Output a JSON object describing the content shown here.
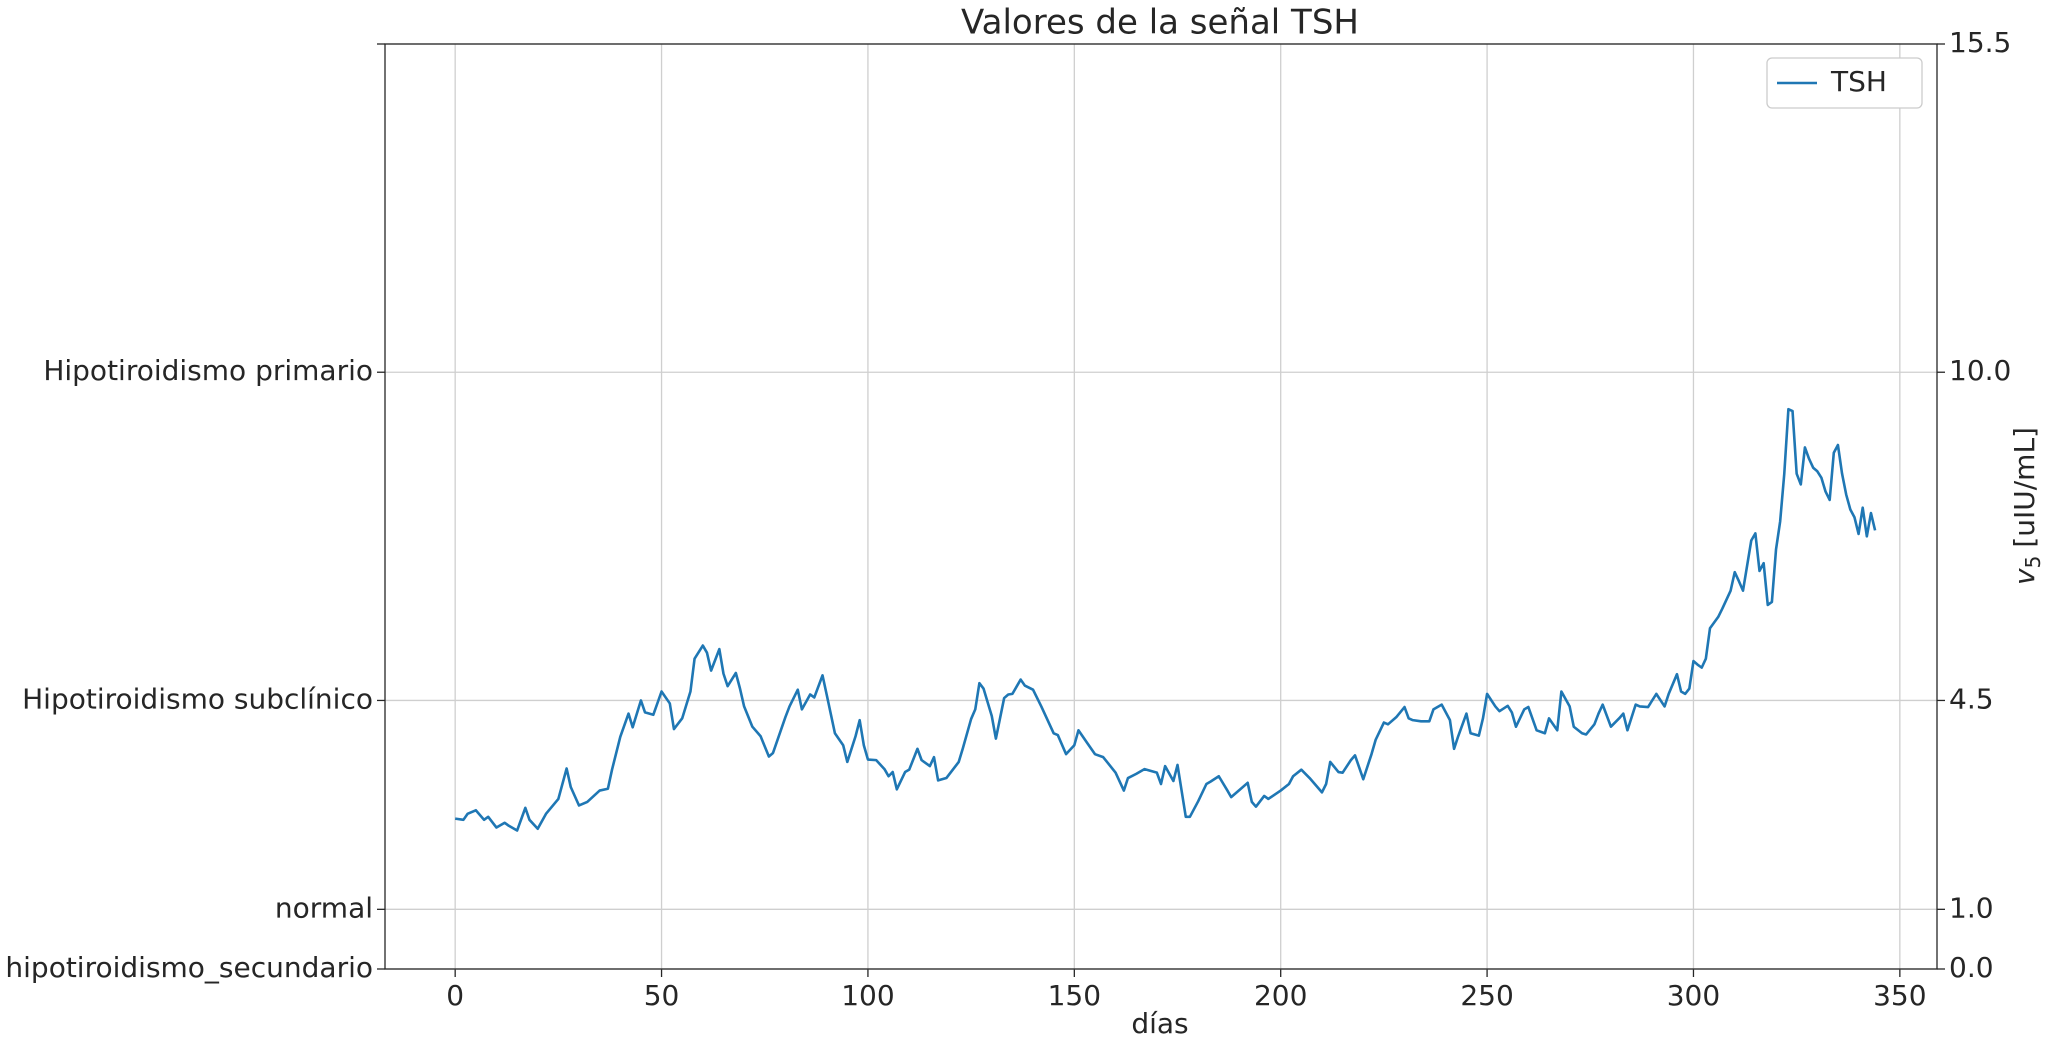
{
  "chart_data": {
    "type": "line",
    "title": "Valores de la señal TSH",
    "xlabel": "días",
    "y2label": {
      "symbol": "v",
      "subscript": "5",
      "unit": "[uIU/mL]"
    },
    "xlim": [
      -17,
      359
    ],
    "xticks": [
      0,
      50,
      100,
      150,
      200,
      250,
      300,
      350
    ],
    "ylim": [
      0,
      15.5
    ],
    "yticks": [
      {
        "value": 0,
        "label": "0.0"
      },
      {
        "value": 1,
        "label": "1.0"
      },
      4.5,
      {
        "value": 10,
        "label": "10.0"
      },
      15.5
    ],
    "y_category_ticks": [
      {
        "value": 0,
        "label": "hipotiroidismo_secundario"
      },
      {
        "value": 1,
        "label": "normal"
      },
      {
        "value": 4.5,
        "label": "Hipotiroidismo subclínico"
      },
      {
        "value": 10,
        "label": "Hipotiroidismo primario"
      }
    ],
    "grid": true,
    "legend": "upper right",
    "x": [
      0,
      2,
      3,
      5,
      7,
      8,
      10,
      12,
      13,
      15,
      17,
      18,
      20,
      22,
      25,
      27,
      28,
      30,
      32,
      35,
      37,
      38,
      40,
      42,
      43,
      45,
      46,
      48,
      50,
      52,
      53,
      55,
      57,
      58,
      60,
      61,
      62,
      64,
      65,
      66,
      68,
      69,
      70,
      72,
      74,
      76,
      77,
      80,
      81,
      83,
      84,
      86,
      87,
      89,
      90,
      92,
      94,
      95,
      97,
      98,
      99,
      100,
      102,
      104,
      105,
      106,
      107,
      109,
      110,
      112,
      113,
      115,
      116,
      117,
      119,
      122,
      123,
      125,
      126,
      127,
      128,
      130,
      131,
      133,
      134,
      135,
      137,
      138,
      140,
      142,
      145,
      146,
      148,
      150,
      151,
      153,
      155,
      157,
      160,
      162,
      163,
      165,
      167,
      170,
      171,
      172,
      174,
      175,
      177,
      178,
      180,
      182,
      183,
      185,
      187,
      188,
      190,
      192,
      193,
      194,
      196,
      197,
      200,
      202,
      203,
      205,
      207,
      210,
      211,
      212,
      214,
      215,
      217,
      218,
      220,
      222,
      223,
      225,
      226,
      228,
      230,
      231,
      232,
      234,
      236,
      237,
      239,
      240,
      241,
      242,
      243,
      245,
      246,
      248,
      249,
      250,
      252,
      253,
      255,
      256,
      257,
      259,
      260,
      262,
      264,
      265,
      267,
      268,
      270,
      271,
      273,
      274,
      276,
      277,
      278,
      280,
      282,
      283,
      284,
      286,
      287,
      289,
      290,
      291,
      293,
      294,
      296,
      297,
      298,
      299,
      300,
      301,
      302,
      303,
      304,
      306,
      307,
      309,
      310,
      311,
      312,
      314,
      315,
      316,
      317,
      318,
      319,
      320,
      321,
      322,
      323,
      324,
      325,
      326,
      327,
      328,
      329,
      330,
      331,
      332,
      333,
      334,
      335,
      336,
      337,
      338,
      339,
      340,
      341,
      342,
      343,
      344
    ],
    "series": [
      {
        "name": "TSH",
        "color": "#1f77b4",
        "values": [
          2.52,
          2.5,
          2.6,
          2.66,
          2.5,
          2.55,
          2.37,
          2.45,
          2.4,
          2.32,
          2.7,
          2.5,
          2.35,
          2.6,
          2.85,
          3.36,
          3.05,
          2.74,
          2.8,
          2.99,
          3.02,
          3.34,
          3.89,
          4.28,
          4.05,
          4.5,
          4.3,
          4.26,
          4.65,
          4.45,
          4.02,
          4.2,
          4.65,
          5.2,
          5.42,
          5.3,
          5.0,
          5.36,
          4.95,
          4.74,
          4.96,
          4.7,
          4.4,
          4.06,
          3.9,
          3.56,
          3.62,
          4.22,
          4.4,
          4.68,
          4.35,
          4.6,
          4.55,
          4.92,
          4.6,
          3.95,
          3.75,
          3.47,
          3.9,
          4.17,
          3.75,
          3.51,
          3.5,
          3.35,
          3.23,
          3.3,
          3.01,
          3.3,
          3.34,
          3.69,
          3.5,
          3.4,
          3.55,
          3.16,
          3.2,
          3.47,
          3.7,
          4.19,
          4.35,
          4.79,
          4.7,
          4.24,
          3.86,
          4.54,
          4.6,
          4.61,
          4.85,
          4.75,
          4.68,
          4.4,
          3.95,
          3.92,
          3.6,
          3.75,
          4.0,
          3.8,
          3.6,
          3.55,
          3.29,
          2.99,
          3.2,
          3.27,
          3.35,
          3.29,
          3.1,
          3.4,
          3.15,
          3.42,
          2.55,
          2.55,
          2.81,
          3.1,
          3.14,
          3.23,
          3.0,
          2.88,
          3.0,
          3.12,
          2.8,
          2.72,
          2.9,
          2.85,
          2.99,
          3.1,
          3.23,
          3.34,
          3.2,
          2.96,
          3.1,
          3.47,
          3.3,
          3.29,
          3.5,
          3.58,
          3.18,
          3.6,
          3.84,
          4.13,
          4.1,
          4.22,
          4.39,
          4.2,
          4.17,
          4.15,
          4.15,
          4.35,
          4.43,
          4.3,
          4.17,
          3.69,
          3.9,
          4.28,
          3.95,
          3.91,
          4.2,
          4.61,
          4.4,
          4.32,
          4.41,
          4.3,
          4.06,
          4.35,
          4.39,
          4.0,
          3.95,
          4.2,
          4.0,
          4.65,
          4.4,
          4.06,
          3.95,
          3.93,
          4.1,
          4.28,
          4.43,
          4.06,
          4.2,
          4.28,
          4.0,
          4.43,
          4.4,
          4.39,
          4.5,
          4.61,
          4.4,
          4.61,
          4.94,
          4.65,
          4.61,
          4.7,
          5.16,
          5.1,
          5.05,
          5.2,
          5.71,
          5.9,
          6.04,
          6.34,
          6.65,
          6.5,
          6.34,
          7.18,
          7.3,
          6.67,
          6.8,
          6.1,
          6.15,
          7.03,
          7.5,
          8.3,
          9.38,
          9.35,
          8.3,
          8.12,
          8.74,
          8.55,
          8.4,
          8.34,
          8.23,
          8.0,
          7.86,
          8.65,
          8.78,
          8.3,
          7.95,
          7.7,
          7.57,
          7.29,
          7.73,
          7.25,
          7.64,
          7.35
        ]
      }
    ]
  }
}
